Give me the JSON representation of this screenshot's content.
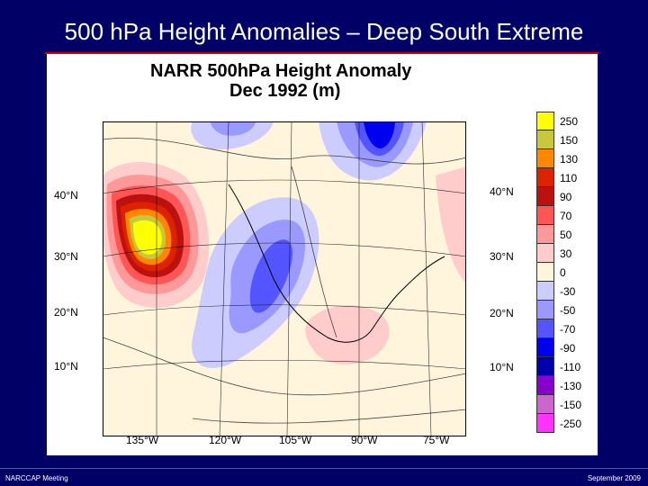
{
  "slide": {
    "title": "500 hPa Height Anomalies – Deep South Extreme",
    "footer_left": "NARCCAP Meeting",
    "footer_right": "September 2009"
  },
  "figure": {
    "title_line1": "NARR 500hPa Height Anomaly",
    "title_line2": "Dec 1992 (m)",
    "lat_labels_left": [
      "40°N",
      "30°N",
      "20°N",
      "10°N"
    ],
    "lat_labels_right": [
      "40°N",
      "30°N",
      "20°N",
      "10°N"
    ],
    "lon_labels": [
      "135°W",
      "120°W",
      "105°W",
      "90°W",
      "75°W"
    ]
  },
  "legend": {
    "labels": [
      "250",
      "150",
      "130",
      "110",
      "90",
      "70",
      "50",
      "30",
      "0",
      "-30",
      "-50",
      "-70",
      "-90",
      "-110",
      "-130",
      "-150",
      "-250"
    ],
    "colors": [
      "#ffff00",
      "#c8c83c",
      "#ff8800",
      "#dd2200",
      "#bb1111",
      "#ff5555",
      "#ff9999",
      "#ffcccc",
      "#fff5dc",
      "#ccccff",
      "#9999ff",
      "#5555ff",
      "#0000ee",
      "#0000aa",
      "#8800cc",
      "#cc66cc",
      "#ff33ff"
    ]
  }
}
